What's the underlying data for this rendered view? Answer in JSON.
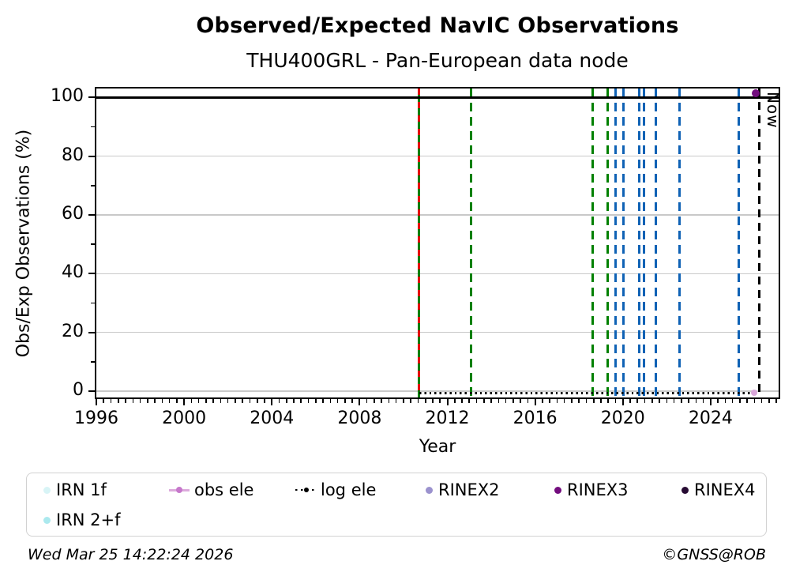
{
  "title": "Observed/Expected NavIC Observations",
  "subtitle": "THU400GRL - Pan-European data node",
  "footer": {
    "timestamp": "Wed Mar 25 14:22:24 2026",
    "copyright": "©GNSS@ROB"
  },
  "chart_data": {
    "type": "line",
    "title": "Observed/Expected NavIC Observations",
    "subtitle": "THU400GRL - Pan-European data node",
    "xlabel": "Year",
    "ylabel": "Obs/Exp Observations (%)",
    "xlim": [
      1996,
      2027.1
    ],
    "ylim": [
      -2.1,
      103
    ],
    "x_major_ticks": [
      1996,
      2000,
      2004,
      2008,
      2012,
      2016,
      2020,
      2024
    ],
    "x_minor_step_years": 0.3333,
    "y_major_ticks": [
      0,
      20,
      40,
      60,
      80,
      100
    ],
    "y_minor_ticks": [
      10,
      30,
      50,
      70,
      90
    ],
    "grid": "horizontal-major-gray",
    "colors": {
      "green": "#008000",
      "red": "#e60000",
      "blue": "#0f62b5",
      "black": "#000000",
      "grid": "#c9c9c9"
    },
    "hline": {
      "y": 100,
      "color": "#000000"
    },
    "now_line": {
      "year": 2026.23,
      "label": "Now",
      "color": "#000000",
      "style": "dashed"
    },
    "event_lines": [
      {
        "year": 2010.72,
        "color": "green",
        "style": "solid"
      },
      {
        "year": 2010.72,
        "color": "red",
        "style": "dashed",
        "dash": [
          8,
          17
        ]
      },
      {
        "year": 2013.09,
        "color": "green",
        "style": "dashed"
      },
      {
        "year": 2018.63,
        "color": "green",
        "style": "dashed"
      },
      {
        "year": 2019.3,
        "color": "green",
        "style": "dashed"
      },
      {
        "year": 2019.66,
        "color": "blue",
        "style": "dashed"
      },
      {
        "year": 2020.02,
        "color": "blue",
        "style": "dashed"
      },
      {
        "year": 2020.74,
        "color": "blue",
        "style": "dashed"
      },
      {
        "year": 2020.98,
        "color": "blue",
        "style": "dashed"
      },
      {
        "year": 2021.51,
        "color": "blue",
        "style": "dashed"
      },
      {
        "year": 2022.59,
        "color": "blue",
        "style": "dashed"
      },
      {
        "year": 2025.3,
        "color": "blue",
        "style": "dashed"
      }
    ],
    "series": [
      {
        "name": "log ele",
        "style": "dotted",
        "color": "#000000",
        "x": [
          2010.72,
          2025.9
        ],
        "y": [
          -0.6,
          -0.6
        ]
      },
      {
        "name": "obs ele",
        "style": "solid",
        "color": "#dcaadc",
        "marker_color": "#d9a6d9",
        "marker_size": 8,
        "points": [
          {
            "x": 2026.0,
            "y": -0.6
          }
        ]
      },
      {
        "name": "RINEX3",
        "style": "marker",
        "color": "#730d7e",
        "marker_color": "#730d7e",
        "marker_size": 10,
        "points": [
          {
            "x": 2026.05,
            "y": 101.5
          }
        ]
      },
      {
        "name": "IRN 1f",
        "style": "marker",
        "color": "#d8f4f6",
        "points": []
      },
      {
        "name": "IRN 2+f",
        "style": "marker",
        "color": "#abe9ee",
        "points": []
      },
      {
        "name": "RINEX2",
        "style": "marker",
        "color": "#9b92ce",
        "points": []
      },
      {
        "name": "RINEX4",
        "style": "marker",
        "color": "#270b33",
        "points": []
      }
    ],
    "legend": [
      {
        "label": "IRN 1f",
        "marker": "dot",
        "color": "#d8f4f6"
      },
      {
        "label": "obs ele",
        "marker": "line-dot",
        "color": "#dcaadc",
        "marker_color": "#c678cb"
      },
      {
        "label": "log ele",
        "marker": "dotted-line-dot",
        "color": "#000000"
      },
      {
        "label": "RINEX2",
        "marker": "dot",
        "color": "#9b92ce"
      },
      {
        "label": "RINEX3",
        "marker": "dot",
        "color": "#730d7e"
      },
      {
        "label": "RINEX4",
        "marker": "dot",
        "color": "#270b33"
      },
      {
        "label": "IRN 2+f",
        "marker": "dot",
        "color": "#abe9ee"
      }
    ],
    "legend_position": "bottom"
  }
}
